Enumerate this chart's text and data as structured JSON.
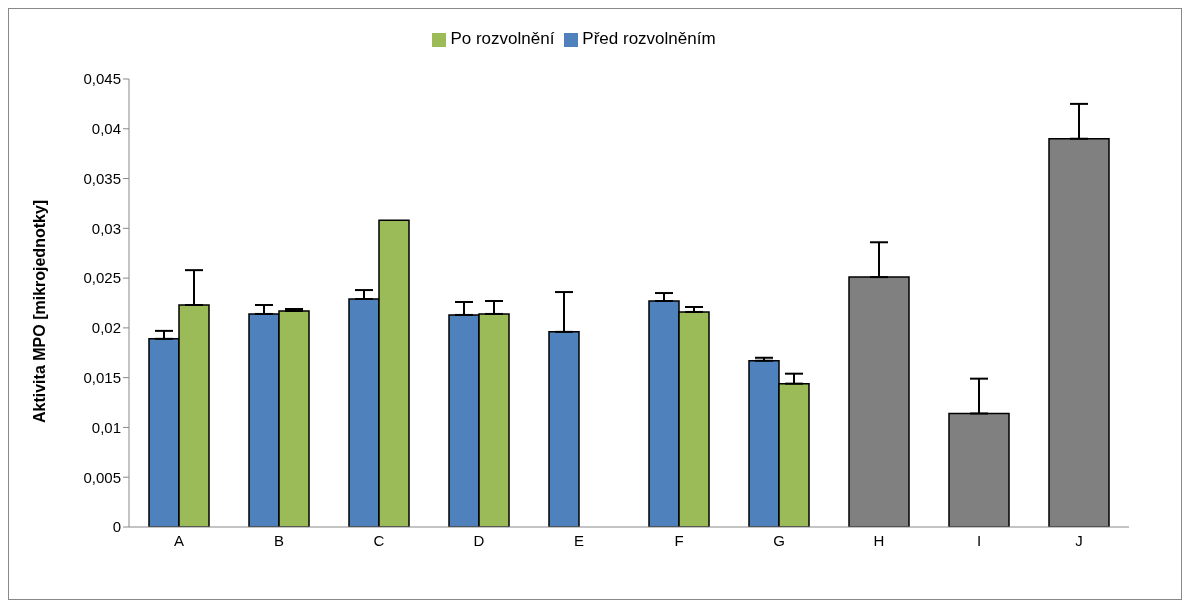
{
  "chart_data": {
    "type": "bar",
    "ylabel": "Aktivita MPO [mikrojednotky]",
    "categories": [
      "A",
      "B",
      "C",
      "D",
      "E",
      "F",
      "G",
      "H",
      "I",
      "J"
    ],
    "series": [
      {
        "name": "Před rozvolněním",
        "color": "#4f81bd",
        "values": [
          0.0189,
          0.0214,
          0.0229,
          0.0213,
          0.0196,
          0.0227,
          0.0167,
          null,
          null,
          null
        ],
        "errors": [
          [
            0.0189,
            0.0197
          ],
          [
            0.0214,
            0.0223
          ],
          [
            0.0229,
            0.0238
          ],
          [
            0.0213,
            0.0226
          ],
          [
            0.0196,
            0.0236
          ],
          [
            0.0227,
            0.0235
          ],
          [
            0.0167,
            0.017
          ],
          null,
          null,
          null
        ]
      },
      {
        "name": "Po rozvolnění",
        "color": "#9bbb59",
        "values": [
          0.0223,
          0.0217,
          0.0308,
          0.0214,
          null,
          0.0216,
          0.0144,
          null,
          null,
          null
        ],
        "errors": [
          [
            0.0223,
            0.0258
          ],
          [
            0.0217,
            0.0219
          ],
          null,
          [
            0.0214,
            0.0227
          ],
          null,
          [
            0.0216,
            0.0221
          ],
          [
            0.0144,
            0.0154
          ],
          null,
          null,
          null
        ]
      },
      {
        "color": "#808080",
        "values": [
          null,
          null,
          null,
          null,
          null,
          null,
          null,
          0.0251,
          0.0114,
          0.039
        ],
        "errors": [
          null,
          null,
          null,
          null,
          null,
          null,
          null,
          [
            0.0251,
            0.0286
          ],
          [
            0.0114,
            0.0149
          ],
          [
            0.039,
            0.0425
          ]
        ]
      }
    ],
    "ylim": [
      0,
      0.045
    ],
    "yticks": [
      {
        "value": 0,
        "label": "0"
      },
      {
        "value": 0.005,
        "label": "0,005"
      },
      {
        "value": 0.01,
        "label": "0,01"
      },
      {
        "value": 0.015,
        "label": "0,015"
      },
      {
        "value": 0.02,
        "label": "0,02"
      },
      {
        "value": 0.025,
        "label": "0,025"
      },
      {
        "value": 0.03,
        "label": "0,03"
      },
      {
        "value": 0.035,
        "label": "0,035"
      },
      {
        "value": 0.04,
        "label": "0,04"
      },
      {
        "value": 0.045,
        "label": "0,045"
      }
    ],
    "grid": false,
    "legend": "top"
  }
}
